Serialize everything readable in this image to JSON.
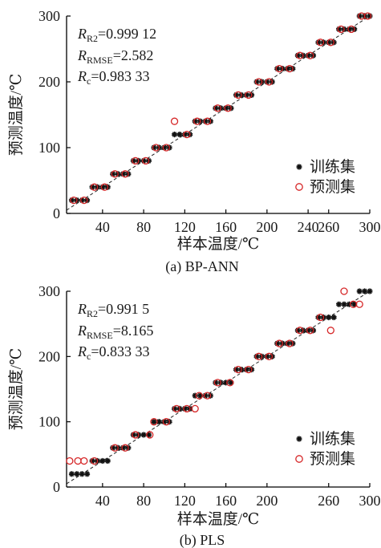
{
  "chart_data": [
    {
      "type": "scatter",
      "caption": "(a)  BP-ANN",
      "xlabel": "样本温度/℃",
      "ylabel": "预测温度/℃",
      "xlim": [
        5,
        300
      ],
      "ylim": [
        0,
        300
      ],
      "xticks": [
        "40",
        "80",
        "120",
        "160",
        "200",
        "240",
        "260",
        "300"
      ],
      "xtick_values": [
        40,
        80,
        120,
        160,
        200,
        240,
        260,
        300
      ],
      "yticks": [
        "0",
        "100",
        "200",
        "300"
      ],
      "ytick_values": [
        0,
        100,
        200,
        300
      ],
      "reference_line": {
        "type": "identity",
        "style": "dashed"
      },
      "stats": [
        {
          "sym": "R",
          "sub": "R2",
          "val": "=0.999 12"
        },
        {
          "sym": "R",
          "sub": "RMSE",
          "val": "=2.582"
        },
        {
          "sym": "R",
          "sub": "c",
          "val": "=0.983 33"
        }
      ],
      "legend_position": "right",
      "series": [
        {
          "name": "训练集",
          "marker": "asterisk",
          "color": "#111111",
          "points": [
            [
              10,
              20
            ],
            [
              15,
              20
            ],
            [
              20,
              20
            ],
            [
              25,
              20
            ],
            [
              30,
              40
            ],
            [
              35,
              40
            ],
            [
              40,
              40
            ],
            [
              45,
              40
            ],
            [
              50,
              60
            ],
            [
              55,
              60
            ],
            [
              60,
              60
            ],
            [
              65,
              60
            ],
            [
              70,
              80
            ],
            [
              75,
              80
            ],
            [
              80,
              80
            ],
            [
              85,
              80
            ],
            [
              90,
              100
            ],
            [
              95,
              100
            ],
            [
              100,
              100
            ],
            [
              105,
              100
            ],
            [
              110,
              120
            ],
            [
              115,
              120
            ],
            [
              120,
              120
            ],
            [
              125,
              120
            ],
            [
              130,
              140
            ],
            [
              135,
              140
            ],
            [
              140,
              140
            ],
            [
              145,
              140
            ],
            [
              150,
              160
            ],
            [
              155,
              160
            ],
            [
              160,
              160
            ],
            [
              165,
              160
            ],
            [
              170,
              180
            ],
            [
              175,
              180
            ],
            [
              180,
              180
            ],
            [
              185,
              180
            ],
            [
              190,
              200
            ],
            [
              195,
              200
            ],
            [
              200,
              200
            ],
            [
              205,
              200
            ],
            [
              210,
              220
            ],
            [
              215,
              220
            ],
            [
              220,
              220
            ],
            [
              225,
              220
            ],
            [
              230,
              240
            ],
            [
              235,
              240
            ],
            [
              240,
              240
            ],
            [
              245,
              240
            ],
            [
              250,
              260
            ],
            [
              255,
              260
            ],
            [
              260,
              260
            ],
            [
              265,
              260
            ],
            [
              270,
              280
            ],
            [
              275,
              280
            ],
            [
              280,
              280
            ],
            [
              285,
              280
            ],
            [
              290,
              300
            ],
            [
              295,
              300
            ],
            [
              300,
              300
            ]
          ]
        },
        {
          "name": "预测集",
          "marker": "circle",
          "color": "#d62728",
          "points": [
            [
              12,
              20
            ],
            [
              22,
              20
            ],
            [
              32,
              40
            ],
            [
              42,
              40
            ],
            [
              52,
              60
            ],
            [
              62,
              60
            ],
            [
              72,
              80
            ],
            [
              82,
              80
            ],
            [
              92,
              100
            ],
            [
              102,
              100
            ],
            [
              110,
              140
            ],
            [
              122,
              120
            ],
            [
              132,
              140
            ],
            [
              142,
              140
            ],
            [
              152,
              160
            ],
            [
              162,
              160
            ],
            [
              172,
              180
            ],
            [
              182,
              180
            ],
            [
              192,
              200
            ],
            [
              202,
              200
            ],
            [
              212,
              220
            ],
            [
              222,
              220
            ],
            [
              232,
              240
            ],
            [
              242,
              240
            ],
            [
              252,
              260
            ],
            [
              262,
              260
            ],
            [
              272,
              280
            ],
            [
              282,
              280
            ],
            [
              292,
              300
            ],
            [
              298,
              300
            ]
          ]
        }
      ]
    },
    {
      "type": "scatter",
      "caption": "(b)  PLS",
      "xlabel": "样本温度/℃",
      "ylabel": "预测温度/℃",
      "xlim": [
        5,
        300
      ],
      "ylim": [
        0,
        300
      ],
      "xticks": [
        "40",
        "80",
        "120",
        "160",
        "200",
        "260",
        "300"
      ],
      "xtick_values": [
        40,
        80,
        120,
        160,
        200,
        260,
        300
      ],
      "yticks": [
        "0",
        "100",
        "200",
        "300"
      ],
      "ytick_values": [
        0,
        100,
        200,
        300
      ],
      "reference_line": {
        "type": "identity",
        "style": "dashed"
      },
      "stats": [
        {
          "sym": "R",
          "sub": "R2",
          "val": "=0.991 5"
        },
        {
          "sym": "R",
          "sub": "RMSE",
          "val": "=8.165"
        },
        {
          "sym": "R",
          "sub": "c",
          "val": "=0.833 33"
        }
      ],
      "legend_position": "right",
      "series": [
        {
          "name": "训练集",
          "marker": "asterisk",
          "color": "#111111",
          "points": [
            [
              10,
              20
            ],
            [
              15,
              20
            ],
            [
              20,
              20
            ],
            [
              25,
              20
            ],
            [
              30,
              40
            ],
            [
              35,
              40
            ],
            [
              40,
              40
            ],
            [
              45,
              40
            ],
            [
              50,
              60
            ],
            [
              55,
              60
            ],
            [
              60,
              60
            ],
            [
              65,
              60
            ],
            [
              70,
              80
            ],
            [
              75,
              80
            ],
            [
              80,
              80
            ],
            [
              85,
              80
            ],
            [
              90,
              100
            ],
            [
              95,
              100
            ],
            [
              100,
              100
            ],
            [
              105,
              100
            ],
            [
              110,
              120
            ],
            [
              115,
              120
            ],
            [
              120,
              120
            ],
            [
              125,
              120
            ],
            [
              130,
              140
            ],
            [
              135,
              140
            ],
            [
              140,
              140
            ],
            [
              145,
              140
            ],
            [
              150,
              160
            ],
            [
              155,
              160
            ],
            [
              160,
              160
            ],
            [
              165,
              160
            ],
            [
              170,
              180
            ],
            [
              175,
              180
            ],
            [
              180,
              180
            ],
            [
              185,
              180
            ],
            [
              190,
              200
            ],
            [
              195,
              200
            ],
            [
              200,
              200
            ],
            [
              205,
              200
            ],
            [
              210,
              220
            ],
            [
              215,
              220
            ],
            [
              220,
              220
            ],
            [
              225,
              220
            ],
            [
              230,
              240
            ],
            [
              235,
              240
            ],
            [
              240,
              240
            ],
            [
              245,
              240
            ],
            [
              250,
              260
            ],
            [
              255,
              260
            ],
            [
              260,
              260
            ],
            [
              265,
              260
            ],
            [
              270,
              280
            ],
            [
              275,
              280
            ],
            [
              280,
              280
            ],
            [
              285,
              280
            ],
            [
              290,
              300
            ],
            [
              295,
              300
            ],
            [
              300,
              300
            ]
          ]
        },
        {
          "name": "预测集",
          "marker": "circle",
          "color": "#d62728",
          "points": [
            [
              8,
              40
            ],
            [
              16,
              40
            ],
            [
              22,
              40
            ],
            [
              32,
              40
            ],
            [
              52,
              60
            ],
            [
              62,
              60
            ],
            [
              72,
              80
            ],
            [
              86,
              80
            ],
            [
              90,
              100
            ],
            [
              102,
              100
            ],
            [
              112,
              120
            ],
            [
              122,
              120
            ],
            [
              130,
              120
            ],
            [
              134,
              140
            ],
            [
              142,
              140
            ],
            [
              152,
              160
            ],
            [
              164,
              160
            ],
            [
              172,
              180
            ],
            [
              182,
              180
            ],
            [
              192,
              200
            ],
            [
              202,
              200
            ],
            [
              212,
              220
            ],
            [
              222,
              220
            ],
            [
              232,
              240
            ],
            [
              242,
              240
            ],
            [
              252,
              260
            ],
            [
              262,
              240
            ],
            [
              275,
              300
            ],
            [
              284,
              280
            ],
            [
              290,
              280
            ]
          ]
        }
      ]
    }
  ]
}
